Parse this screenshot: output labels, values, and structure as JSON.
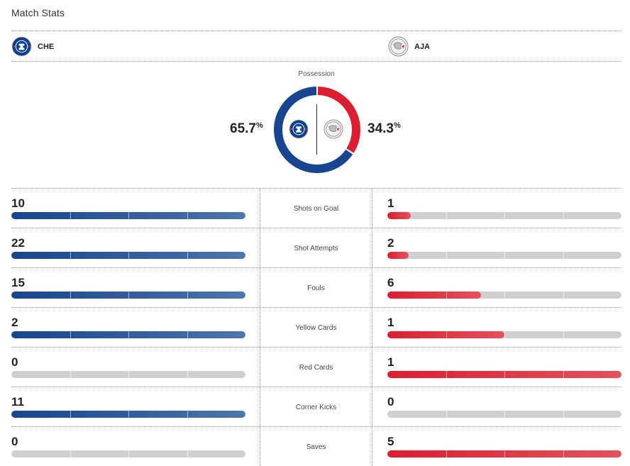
{
  "header": {
    "title": "Match Stats"
  },
  "teams": {
    "home": {
      "abbr": "CHE",
      "crest_icon": "chelsea-crest-icon",
      "color": "#17458f"
    },
    "away": {
      "abbr": "AJA",
      "crest_icon": "ajax-crest-icon",
      "color": "#dc1e30"
    }
  },
  "possession": {
    "label": "Possession",
    "home_value": "65.7",
    "away_value": "34.3",
    "unit": "%",
    "home_pct": 65.7,
    "away_pct": 34.3
  },
  "stats": [
    {
      "label": "Shots on Goal",
      "home": "10",
      "away": "1"
    },
    {
      "label": "Shot Attempts",
      "home": "22",
      "away": "2"
    },
    {
      "label": "Fouls",
      "home": "15",
      "away": "6"
    },
    {
      "label": "Yellow Cards",
      "home": "2",
      "away": "1"
    },
    {
      "label": "Red Cards",
      "home": "0",
      "away": "1"
    },
    {
      "label": "Corner Kicks",
      "home": "11",
      "away": "0"
    },
    {
      "label": "Saves",
      "home": "0",
      "away": "5"
    }
  ]
}
